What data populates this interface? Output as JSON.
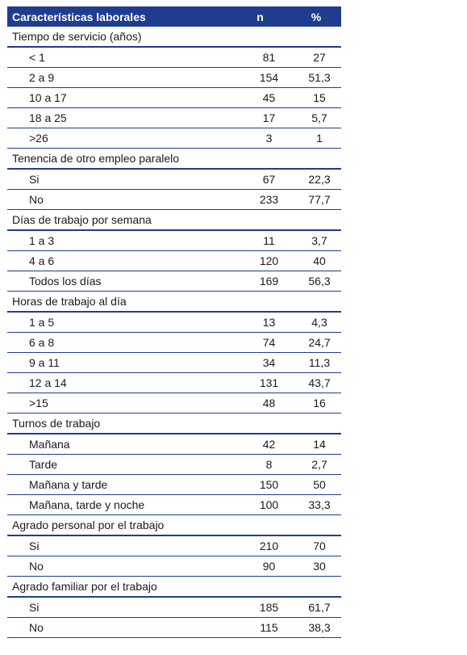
{
  "header": {
    "col_label": "Características laborales",
    "col_n": "n",
    "col_pct": "%"
  },
  "rows": [
    {
      "type": "group",
      "label": "Tiempo de servicio (años)"
    },
    {
      "type": "item",
      "label": "< 1",
      "n": "81",
      "pct": "27"
    },
    {
      "type": "item",
      "label": "2 a 9",
      "n": "154",
      "pct": "51,3"
    },
    {
      "type": "item",
      "label": "10 a 17",
      "n": "45",
      "pct": "15"
    },
    {
      "type": "item",
      "label": "18 a 25",
      "n": "17",
      "pct": "5,7"
    },
    {
      "type": "item",
      "label": ">26",
      "n": "3",
      "pct": "1"
    },
    {
      "type": "group",
      "label": "Tenencia de otro empleo paralelo"
    },
    {
      "type": "item",
      "label": "Si",
      "n": "67",
      "pct": "22,3"
    },
    {
      "type": "item",
      "label": "No",
      "n": "233",
      "pct": "77,7"
    },
    {
      "type": "group",
      "label": "Días de trabajo por semana"
    },
    {
      "type": "item",
      "label": "1 a 3",
      "n": "11",
      "pct": "3,7"
    },
    {
      "type": "item",
      "label": "4 a 6",
      "n": "120",
      "pct": "40"
    },
    {
      "type": "item",
      "label": "Todos los días",
      "n": "169",
      "pct": "56,3"
    },
    {
      "type": "group",
      "label": "Horas de trabajo al día"
    },
    {
      "type": "item",
      "label": "1 a 5",
      "n": "13",
      "pct": "4,3"
    },
    {
      "type": "item",
      "label": "6 a 8",
      "n": "74",
      "pct": "24,7"
    },
    {
      "type": "item",
      "label": "9 a 11",
      "n": "34",
      "pct": "11,3"
    },
    {
      "type": "item",
      "label": "12 a 14",
      "n": "131",
      "pct": "43,7"
    },
    {
      "type": "item",
      "label": ">15",
      "n": "48",
      "pct": "16"
    },
    {
      "type": "group",
      "label": "Turnos de trabajo"
    },
    {
      "type": "item",
      "label": "Mañana",
      "n": "42",
      "pct": "14"
    },
    {
      "type": "item",
      "label": "Tarde",
      "n": "8",
      "pct": "2,7"
    },
    {
      "type": "item",
      "label": "Mañana y tarde",
      "n": "150",
      "pct": "50"
    },
    {
      "type": "item",
      "label": "Mañana, tarde y noche",
      "n": "100",
      "pct": "33,3"
    },
    {
      "type": "group",
      "label": "Agrado personal por el trabajo"
    },
    {
      "type": "item",
      "label": "Si",
      "n": "210",
      "pct": "70"
    },
    {
      "type": "item",
      "label": "No",
      "n": "90",
      "pct": "30"
    },
    {
      "type": "group",
      "label": "Agrado familiar por el trabajo"
    },
    {
      "type": "item",
      "label": "Si",
      "n": "185",
      "pct": "61,7"
    },
    {
      "type": "item",
      "label": "No",
      "n": "115",
      "pct": "38,3"
    }
  ],
  "colors": {
    "header_bg": "#1f3d8e",
    "header_text": "#ffffff",
    "rule": "#1f3d8e"
  }
}
